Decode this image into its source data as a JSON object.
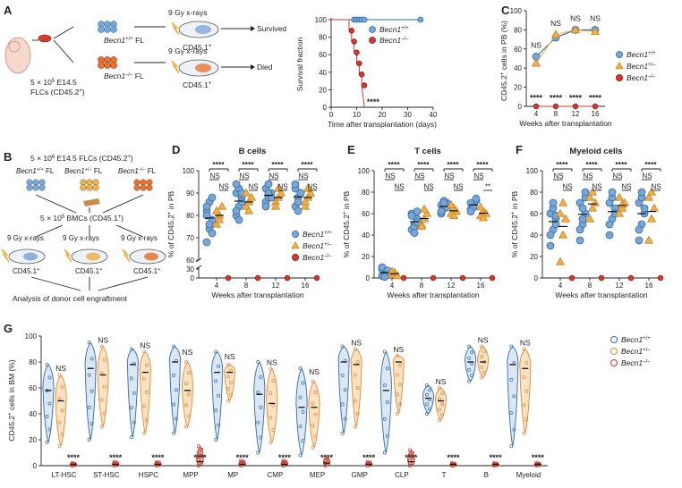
{
  "colors": {
    "blue": "#7aa6d6",
    "blueStroke": "#2f6ba8",
    "orange": "#f0b04a",
    "orangeStroke": "#c9821f",
    "red": "#d23a2f",
    "redStroke": "#8e1a14",
    "axis": "#222"
  },
  "panelA": {
    "letter": "A",
    "cells_label": "5 × 10",
    "cells_exp": "5",
    "cells_label2": "E14.5",
    "cells_label3": "FLCs (CD45.2",
    "cells_label3_end": ")",
    "fl_wt": "Becn1",
    "fl_wt_sup": "+/+",
    "fl_ko": "Becn1",
    "fl_ko_sup": "–/–",
    "fl_suffix": "FL",
    "irr1": "9 Gy x-rays",
    "irr2": "9 Gy x-rays",
    "recipient1": "CD45.1",
    "recipient2": "CD45.1",
    "recipient_sup": "+",
    "outcome1": "Survived",
    "outcome2": "Died"
  },
  "panelB": {
    "letter": "B",
    "title": "5 × 10",
    "title_exp": "6",
    "title_rest": "E14.5 FLCs (CD45.2",
    "title_end": ")",
    "g1": "Becn1",
    "g1_sup": "+/+",
    "g2": "Becn1",
    "g2_sup": "+/–",
    "g3": "Becn1",
    "g3_sup": "–/–",
    "fl": "FL",
    "bmc": "5 × 10",
    "bmc_exp": "5",
    "bmc_rest": "BMCs (CD45.1",
    "bmc_end": ")",
    "irr": "9 Gy x-rays",
    "rec": "CD45.1",
    "rec_sup": "+",
    "analysis": "Analysis of donor cell engraftment"
  },
  "survival": {
    "ylabel": "Survival fraction",
    "xlabel": "Time  after transplantation (days)",
    "legend": [
      {
        "name": "Becn1",
        "sup": "+/+"
      },
      {
        "name": "Becn1",
        "sup": "–/–"
      }
    ],
    "sig": "****"
  },
  "panelC": {
    "letter": "C",
    "ylabel": "CD45.2+ cells in PB (%)",
    "xlabel": "Weeks after transplantation",
    "legend": [
      {
        "name": "Becn1",
        "sup": "+/+"
      },
      {
        "name": "Becn1",
        "sup": "+/–"
      },
      {
        "name": "Becn1",
        "sup": "–/–"
      }
    ],
    "ns": "NS",
    "sig": "****"
  },
  "panelD": {
    "letter": "D",
    "title": "B  cells",
    "ylabel": "% of CD45.2+ in PB",
    "xlabel": "Weeks after transplantation"
  },
  "panelE": {
    "letter": "E",
    "title": "T  cells",
    "ylabel": "% of CD45.2+ in PB",
    "xlabel": "Weeks after transplantation"
  },
  "panelF": {
    "letter": "F",
    "title": "Myeloid  cells",
    "ylabel": "% of CD45.2+ in PB",
    "xlabel": "Weeks after transplantation"
  },
  "legendDEF": [
    {
      "name": "Becn1",
      "sup": "+/+"
    },
    {
      "name": "Becn1",
      "sup": "+/–"
    },
    {
      "name": "Becn1",
      "sup": "–/–"
    }
  ],
  "panelG": {
    "letter": "G",
    "ylabel": "CD45.2+ cells in BM (%)",
    "legend": [
      {
        "name": "Becn1",
        "sup": "+/+"
      },
      {
        "name": "Becn1",
        "sup": "+/–"
      },
      {
        "name": "Becn1",
        "sup": "–/–"
      }
    ]
  },
  "chart_data": [
    {
      "id": "survival",
      "type": "line",
      "title": "",
      "xlabel": "Time  after transplantation (days)",
      "ylabel": "Survival fraction",
      "xlim": [
        0,
        40
      ],
      "ylim": [
        0,
        100
      ],
      "xticks": [
        0,
        10,
        20,
        30,
        40
      ],
      "yticks": [
        0,
        20,
        40,
        60,
        80,
        100
      ],
      "series": [
        {
          "name": "Becn1+/+",
          "x": [
            0,
            9,
            10,
            11,
            12,
            13,
            35
          ],
          "y": [
            100,
            100,
            100,
            100,
            100,
            100,
            100
          ],
          "markers": [
            9,
            10,
            11,
            12,
            13,
            35
          ]
        },
        {
          "name": "Becn1-/-",
          "x": [
            0,
            7,
            7,
            8,
            8,
            9,
            9,
            10,
            10,
            11,
            11,
            12,
            12,
            13
          ],
          "y": [
            100,
            100,
            87.5,
            87.5,
            75,
            75,
            62.5,
            62.5,
            50,
            50,
            37.5,
            37.5,
            25,
            0
          ],
          "markers_x": [
            8,
            9,
            10,
            11,
            12,
            13
          ],
          "markers_y": [
            87.5,
            75,
            62.5,
            50,
            37.5,
            25
          ]
        }
      ],
      "annotation": "****"
    },
    {
      "id": "C",
      "type": "line",
      "xlabel": "Weeks after transplantation",
      "ylabel": "CD45.2+ cells in PB (%)",
      "xlim": [
        2,
        18
      ],
      "ylim": [
        0,
        100
      ],
      "xticks": [
        4,
        8,
        12,
        16
      ],
      "yticks": [
        0,
        20,
        40,
        60,
        80,
        100
      ],
      "x": [
        4,
        8,
        12,
        16
      ],
      "series": [
        {
          "name": "Becn1+/+",
          "values": [
            52,
            72,
            80,
            80
          ]
        },
        {
          "name": "Becn1+/-",
          "values": [
            45,
            75,
            80,
            78
          ]
        },
        {
          "name": "Becn1-/-",
          "values": [
            0,
            0,
            0,
            0
          ]
        }
      ],
      "annotations": [
        "NS",
        "NS",
        "NS",
        "NS"
      ],
      "sig": [
        "****",
        "****",
        "****",
        "****"
      ]
    },
    {
      "id": "D",
      "type": "scatter",
      "title": "B  cells",
      "xlabel": "Weeks after transplantation",
      "ylabel": "% of CD45.2+ in PB",
      "categories": [
        "4",
        "8",
        "12",
        "16"
      ],
      "yticks": [
        0,
        30,
        60,
        70,
        80,
        90,
        100
      ],
      "series": [
        {
          "name": "Becn1+/+",
          "values": [
            [
              68,
              74,
              78,
              82,
              86,
              88,
              80,
              76,
              72,
              84
            ],
            [
              80,
              84,
              88,
              90,
              92,
              86,
              82,
              78,
              90,
              94
            ],
            [
              86,
              88,
              90,
              92,
              94,
              88,
              84,
              90
            ],
            [
              84,
              88,
              90,
              92,
              86,
              90,
              94,
              82
            ]
          ]
        },
        {
          "name": "Becn1+/-",
          "values": [
            [
              76,
              80,
              84,
              82,
              78
            ],
            [
              84,
              86,
              88,
              90,
              82
            ],
            [
              86,
              88,
              90,
              84,
              92
            ],
            [
              84,
              88,
              90,
              86,
              92
            ]
          ]
        },
        {
          "name": "Becn1-/-",
          "values": [
            [
              0
            ],
            [
              0
            ],
            [
              0
            ],
            [
              0
            ]
          ]
        }
      ],
      "brackets": [
        [
          "****",
          "NS",
          "NS"
        ],
        [
          "****",
          "NS",
          "NS"
        ],
        [
          "****",
          "NS",
          "NS"
        ],
        [
          "****",
          "NS",
          "NS"
        ]
      ]
    },
    {
      "id": "E",
      "type": "scatter",
      "title": "T  cells",
      "xlabel": "Weeks after transplantation",
      "ylabel": "% of CD45.2+ in PB",
      "categories": [
        "4",
        "8",
        "12",
        "16"
      ],
      "yticks": [
        0,
        20,
        40,
        60,
        80,
        100
      ],
      "series": [
        {
          "name": "Becn1+/+",
          "values": [
            [
              2,
              4,
              6,
              8,
              3,
              5,
              10,
              1,
              7
            ],
            [
              45,
              50,
              55,
              60,
              48,
              52,
              58,
              42,
              62
            ],
            [
              60,
              65,
              70,
              68,
              72,
              66,
              62,
              70
            ],
            [
              64,
              68,
              72,
              70,
              66,
              74,
              62
            ]
          ]
        },
        {
          "name": "Becn1+/-",
          "values": [
            [
              3,
              5,
              2,
              6
            ],
            [
              50,
              55,
              60,
              48,
              64
            ],
            [
              60,
              65,
              62,
              68,
              58
            ],
            [
              58,
              62,
              60,
              66,
              56
            ]
          ]
        },
        {
          "name": "Becn1-/-",
          "values": [
            [
              0
            ],
            [
              0
            ],
            [
              0
            ],
            [
              0
            ]
          ]
        }
      ],
      "brackets": [
        [
          "****",
          "NS",
          "NS"
        ],
        [
          "****",
          "NS",
          "NS"
        ],
        [
          "****",
          "NS",
          "NS"
        ],
        [
          "****",
          "NS",
          "**"
        ]
      ]
    },
    {
      "id": "F",
      "type": "scatter",
      "title": "Myeloid  cells",
      "xlabel": "Weeks after transplantation",
      "ylabel": "% of CD45.2+ in PB",
      "categories": [
        "4",
        "8",
        "12",
        "16"
      ],
      "yticks": [
        0,
        20,
        40,
        60,
        80,
        100
      ],
      "series": [
        {
          "name": "Becn1+/+",
          "values": [
            [
              30,
              45,
              55,
              60,
              65,
              50,
              40,
              70,
              58
            ],
            [
              35,
              50,
              60,
              70,
              65,
              75,
              45,
              55,
              80
            ],
            [
              40,
              55,
              65,
              70,
              75,
              60,
              50,
              80
            ],
            [
              35,
              50,
              60,
              70,
              75,
              65,
              45,
              80
            ]
          ]
        },
        {
          "name": "Becn1+/-",
          "values": [
            [
              15,
              40,
              55,
              60,
              70
            ],
            [
              55,
              65,
              70,
              75,
              80
            ],
            [
              60,
              65,
              70,
              75,
              68
            ],
            [
              35,
              55,
              65,
              75,
              80
            ]
          ]
        },
        {
          "name": "Becn1-/-",
          "values": [
            [
              0
            ],
            [
              0
            ],
            [
              0
            ],
            [
              0
            ]
          ]
        }
      ],
      "brackets": [
        [
          "****",
          "NS",
          "NS"
        ],
        [
          "****",
          "NS",
          "NS"
        ],
        [
          "****",
          "NS",
          "NS"
        ],
        [
          "****",
          "NS",
          "NS"
        ]
      ]
    },
    {
      "id": "G",
      "type": "violin",
      "ylabel": "CD45.2+ cells in BM (%)",
      "ylim": [
        0,
        100
      ],
      "yticks": [
        0,
        20,
        40,
        60,
        80,
        100
      ],
      "categories": [
        "LT-HSC",
        "ST-HSC",
        "HSPC",
        "MPP",
        "MP",
        "CMP",
        "MEP",
        "GMP",
        "CLP",
        "T",
        "B",
        "Myeloid"
      ],
      "series": [
        {
          "name": "Becn1+/+",
          "medians": [
            58,
            75,
            78,
            80,
            72,
            55,
            45,
            80,
            58,
            52,
            80,
            78
          ],
          "min": [
            18,
            20,
            22,
            25,
            20,
            10,
            8,
            25,
            10,
            40,
            65,
            15
          ],
          "max": [
            78,
            95,
            90,
            92,
            88,
            80,
            75,
            92,
            88,
            62,
            92,
            92
          ]
        },
        {
          "name": "Becn1+/-",
          "medians": [
            50,
            70,
            72,
            58,
            72,
            48,
            45,
            78,
            80,
            50,
            80,
            75
          ],
          "min": [
            15,
            30,
            25,
            30,
            50,
            18,
            14,
            30,
            40,
            35,
            68,
            25
          ],
          "max": [
            70,
            92,
            88,
            80,
            78,
            75,
            65,
            90,
            85,
            60,
            92,
            90
          ]
        },
        {
          "name": "Becn1-/-",
          "medians": [
            1,
            1,
            1,
            3,
            1,
            1,
            2,
            1,
            3,
            1,
            1,
            1
          ],
          "min": [
            0,
            0,
            0,
            0,
            0,
            0,
            0,
            0,
            0,
            0,
            0,
            0
          ],
          "max": [
            2,
            3,
            3,
            15,
            4,
            4,
            6,
            3,
            12,
            2,
            2,
            2
          ]
        }
      ],
      "ns": [
        "NS",
        "NS",
        "NS",
        "NS",
        "NS",
        "NS",
        "NS",
        "NS",
        "NS",
        "NS",
        "NS",
        "NS"
      ],
      "sig": [
        "****",
        "****",
        "****",
        "****",
        "****",
        "****",
        "****",
        "****",
        "****",
        "****",
        "****",
        "****"
      ]
    }
  ]
}
